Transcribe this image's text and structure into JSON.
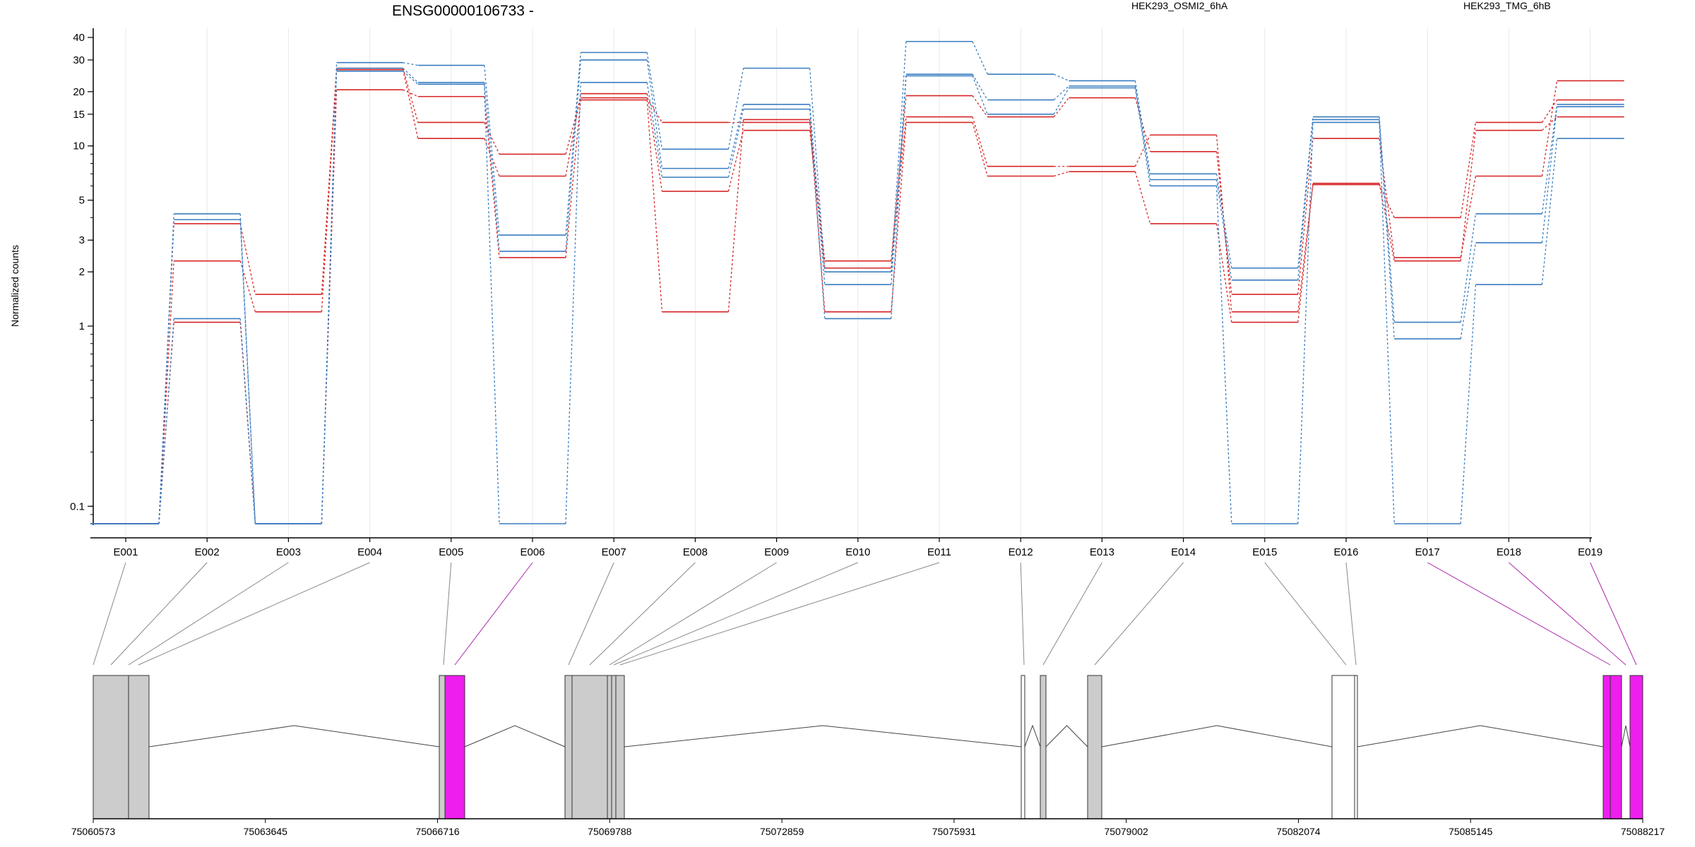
{
  "chart_data": {
    "type": "line",
    "title": "ENSG00000106733 -",
    "ylabel": "Normalized counts",
    "y_scale": "log",
    "ylim": [
      0.08,
      45
    ],
    "y_ticks": [
      0.1,
      1,
      2,
      3,
      5,
      10,
      15,
      20,
      30,
      40
    ],
    "y_tick_labels": [
      "0.1",
      "1",
      "2",
      "3",
      "5",
      "10",
      "15",
      "20",
      "30",
      "40"
    ],
    "grid": "vertical lines at exons",
    "legend_position": "top",
    "exons": [
      "E001",
      "E002",
      "E003",
      "E004",
      "E005",
      "E006",
      "E007",
      "E008",
      "E009",
      "E010",
      "E011",
      "E012",
      "E013",
      "E014",
      "E015",
      "E016",
      "E017",
      "E018",
      "E019"
    ],
    "series": [
      {
        "name": "HEK293_OSMI2_6hA",
        "color": "#d62728",
        "samples": [
          [
            0.08,
            3.7,
            1.5,
            27,
            13.5,
            9.0,
            18.5,
            13.5,
            13.5,
            2.3,
            19.0,
            14.5,
            18.5,
            9.3,
            1.5,
            11.0,
            2.4,
            6.8,
            23.0
          ],
          [
            0.08,
            2.3,
            1.2,
            26.5,
            11.0,
            6.8,
            19.5,
            5.6,
            12.2,
            2.1,
            14.5,
            7.7,
            7.7,
            11.5,
            1.2,
            6.2,
            2.3,
            12.2,
            14.5
          ],
          [
            0.08,
            1.05,
            0.08,
            20.5,
            18.8,
            2.4,
            18.0,
            1.2,
            14.0,
            1.2,
            13.5,
            6.8,
            7.2,
            3.7,
            1.05,
            6.1,
            4.0,
            13.5,
            18.0
          ]
        ]
      },
      {
        "name": "HEK293_TMG_6hB",
        "color": "#3a7dc0",
        "samples": [
          [
            0.08,
            4.2,
            0.08,
            29,
            28,
            3.2,
            33,
            9.6,
            27,
            2.0,
            38,
            25,
            23,
            7.0,
            2.1,
            14.5,
            1.05,
            4.2,
            17.0
          ],
          [
            0.08,
            3.9,
            0.08,
            27,
            22.5,
            2.6,
            30,
            7.5,
            17.0,
            1.7,
            25,
            18.0,
            21.5,
            6.5,
            1.8,
            14.0,
            0.85,
            2.9,
            16.5
          ],
          [
            0.08,
            1.1,
            0.08,
            26,
            22.0,
            0.08,
            22.5,
            6.7,
            16.0,
            1.1,
            24.5,
            15.0,
            21.0,
            6.0,
            0.08,
            13.5,
            0.08,
            1.7,
            11.0
          ]
        ]
      }
    ],
    "genomic_axis": {
      "tick_labels": [
        "75060573",
        "75063645",
        "75066716",
        "75069788",
        "75072859",
        "75075931",
        "75079002",
        "75082074",
        "75085145",
        "75088217"
      ]
    }
  }
}
